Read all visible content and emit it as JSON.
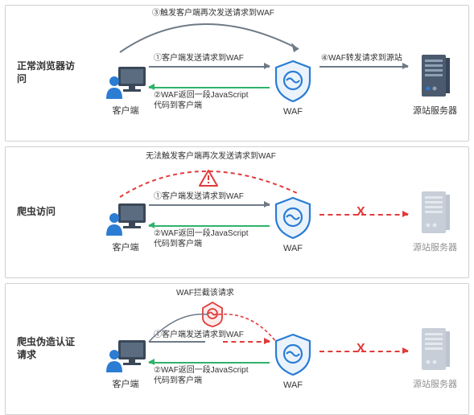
{
  "colors": {
    "blue": "#2b7cd3",
    "red": "#e23b3b",
    "grey": "#6f7a87",
    "lightgrey": "#c9cfd6",
    "green": "#2fb36a",
    "text": "#333333"
  },
  "labels": {
    "client": "客户端",
    "waf": "WAF",
    "origin": "源站服务器"
  },
  "panels": [
    {
      "key": "normal",
      "title": "正常浏览器访问",
      "origin_dim": false,
      "arrows": {
        "step1": "①客户端发送请求到WAF",
        "step2": "②WAF返回一段JavaScript\n代码到客户端",
        "step3": "③触发客户端再次发送请求到WAF",
        "step4": "④WAF转发请求到源站"
      }
    },
    {
      "key": "crawler",
      "title": "爬虫访问",
      "origin_dim": true,
      "arrows": {
        "step1": "①客户端发送请求到WAF",
        "step2": "②WAF返回一段JavaScript\n代码到客户端",
        "arc_fail": "无法触发客户端再次发送请求到WAF"
      },
      "x_mark": "X"
    },
    {
      "key": "forged",
      "title": "爬虫伪造认证请求",
      "origin_dim": true,
      "arrows": {
        "block": "WAF拦截该请求",
        "step1": "①客户端发送请求到WAF",
        "step2": "②WAF返回一段JavaScript\n代码到客户端"
      },
      "x_mark": "X"
    }
  ]
}
